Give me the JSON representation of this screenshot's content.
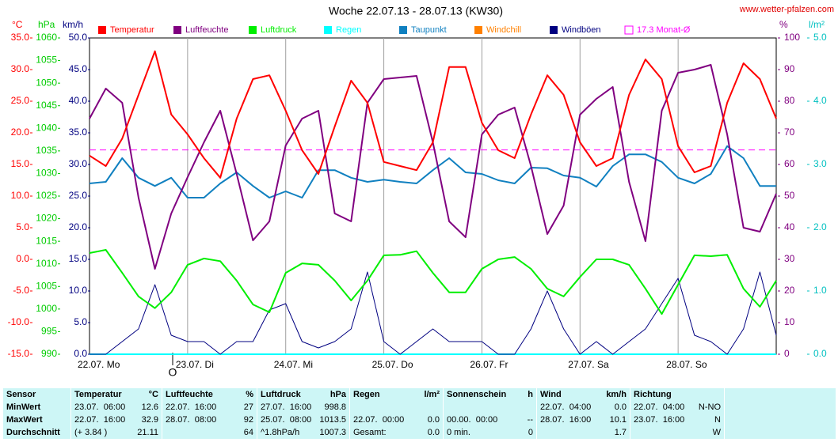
{
  "chart_data": {
    "type": "line",
    "title": "Woche 22.07.13 - 28.07.13 (KW30)",
    "source": "www.wetter-pfalzen.com",
    "marker_label": "O",
    "x_labels": [
      "22.07. Mo",
      "23.07. Di",
      "24.07. Mi",
      "25.07. Do",
      "26.07. Fr",
      "27.07. Sa",
      "28.07. So"
    ],
    "grid": true,
    "axes": {
      "temp": {
        "unit": "°C",
        "color": "#ff0000",
        "side": "left",
        "lim": [
          -15,
          35
        ],
        "ticks": [
          {
            "value": -15,
            "label": "-15.0"
          },
          {
            "value": -10,
            "label": "-10.0"
          },
          {
            "value": -5,
            "label": "-5.0"
          },
          {
            "value": 0,
            "label": "0.0"
          },
          {
            "value": 5,
            "label": "5.0"
          },
          {
            "value": 10,
            "label": "10.0"
          },
          {
            "value": 15,
            "label": "15.0"
          },
          {
            "value": 20,
            "label": "20.0"
          },
          {
            "value": 25,
            "label": "25.0"
          },
          {
            "value": 30,
            "label": "30.0"
          },
          {
            "value": 35,
            "label": "35.0"
          }
        ]
      },
      "hpa": {
        "unit": "hPa",
        "color": "#00cc00",
        "side": "left",
        "lim": [
          990,
          1060
        ],
        "ticks": [
          990,
          995,
          1000,
          1005,
          1010,
          1015,
          1020,
          1025,
          1030,
          1035,
          1040,
          1045,
          1050,
          1055,
          1060
        ]
      },
      "kmh": {
        "unit": "km/h",
        "color": "#000080",
        "side": "left",
        "lim": [
          0,
          50
        ],
        "ticks": [
          {
            "value": 0,
            "label": "0.0"
          },
          {
            "value": 5,
            "label": "5.0"
          },
          {
            "value": 10,
            "label": "10.0"
          },
          {
            "value": 15,
            "label": "15.0"
          },
          {
            "value": 20,
            "label": "20.0"
          },
          {
            "value": 25,
            "label": "25.0"
          },
          {
            "value": 30,
            "label": "30.0"
          },
          {
            "value": 35,
            "label": "35.0"
          },
          {
            "value": 40,
            "label": "40.0"
          },
          {
            "value": 45,
            "label": "45.0"
          },
          {
            "value": 50,
            "label": "50.0"
          }
        ]
      },
      "pct": {
        "unit": "%",
        "color": "#800080",
        "side": "right",
        "lim": [
          0,
          100
        ],
        "ticks": [
          0,
          10,
          20,
          30,
          40,
          50,
          60,
          70,
          80,
          90,
          100
        ]
      },
      "rain": {
        "unit": "l/m²",
        "color": "#00c0c0",
        "side": "right",
        "lim": [
          0,
          5
        ],
        "ticks": [
          {
            "value": 0,
            "label": "0.0"
          },
          {
            "value": 1,
            "label": "1.0"
          },
          {
            "value": 2,
            "label": "2.0"
          },
          {
            "value": 3,
            "label": "3.0"
          },
          {
            "value": 4,
            "label": "4.0"
          },
          {
            "value": 5,
            "label": "5.0"
          }
        ]
      }
    },
    "series": [
      {
        "name": "Temperatur",
        "color": "#ff0000",
        "axis": "temp",
        "values": [
          16.4,
          14.75,
          19.1,
          26,
          32.9,
          22.9,
          19.75,
          16,
          12.9,
          22.25,
          28.5,
          29.1,
          23.5,
          17.25,
          13.5,
          21,
          28.25,
          24.75,
          15.4,
          14.75,
          14.1,
          18.5,
          30.4,
          30.4,
          21.6,
          17.25,
          16,
          22.9,
          29.1,
          26,
          18.5,
          14.75,
          16,
          26,
          31.6,
          28.5,
          17.9,
          13.75,
          14.75,
          24.75,
          31,
          28.5,
          22.25
        ]
      },
      {
        "name": "Luftfeuchte",
        "color": "#800080",
        "axis": "pct",
        "values": [
          74.5,
          84,
          79.5,
          49.5,
          27,
          44.5,
          56,
          67,
          77,
          57,
          36,
          42,
          66,
          74.5,
          77,
          44.5,
          42,
          79.5,
          87,
          87.5,
          88,
          67,
          42,
          37,
          69.5,
          75.75,
          78,
          59.5,
          38,
          47,
          75.75,
          80.75,
          84.5,
          54.5,
          35.75,
          77,
          89,
          90,
          91.5,
          69.5,
          40,
          38.75,
          50.75
        ]
      },
      {
        "name": "Luftdruck",
        "color": "#00ee00",
        "axis": "hpa",
        "values": [
          1012.4,
          1013.1,
          1008,
          1002.8,
          1000.2,
          1003.7,
          1009.8,
          1011.2,
          1010.6,
          1006.3,
          1001,
          999.3,
          1008,
          1010.1,
          1009.8,
          1006.3,
          1001.9,
          1006.3,
          1011.9,
          1012,
          1012.8,
          1008,
          1003.7,
          1003.7,
          1008.9,
          1011,
          1011.5,
          1008.9,
          1004.5,
          1002.8,
          1007.1,
          1011,
          1011,
          1009.8,
          1004.5,
          998.9,
          1005.4,
          1011.9,
          1011.7,
          1012,
          1004.5,
          1000.5,
          1006.3
        ]
      },
      {
        "name": "Regen",
        "color": "#00ffff",
        "axis": "rain",
        "values": [
          0,
          0,
          0,
          0,
          0,
          0,
          0,
          0,
          0,
          0,
          0,
          0,
          0,
          0,
          0,
          0,
          0,
          0,
          0,
          0,
          0,
          0,
          0,
          0,
          0,
          0,
          0,
          0,
          0,
          0,
          0,
          0,
          0,
          0,
          0,
          0,
          0,
          0,
          0,
          0,
          0,
          0,
          0
        ]
      },
      {
        "name": "Taupunkt",
        "color": "#1080c0",
        "axis": "temp",
        "values": [
          12,
          12.25,
          16,
          12.9,
          11.6,
          12.9,
          9.75,
          9.75,
          12,
          13.75,
          11.6,
          9.75,
          10.75,
          9.75,
          14.1,
          14.1,
          12.9,
          12.25,
          12.6,
          12.25,
          12,
          14.1,
          16,
          13.75,
          13.5,
          12.5,
          12,
          14.5,
          14.4,
          13.25,
          12.9,
          11.5,
          14.75,
          16.6,
          16.6,
          15.4,
          12.9,
          12,
          13.5,
          17.9,
          16,
          11.6,
          11.6
        ]
      },
      {
        "name": "Windchill",
        "color": "#ff8000",
        "axis": "temp"
      },
      {
        "name": "Windböen",
        "color": "#000080",
        "axis": "kmh",
        "values": [
          0,
          0,
          2,
          4,
          11,
          3,
          2,
          2,
          0,
          2,
          2,
          7,
          8,
          2,
          1,
          2,
          4,
          13,
          2,
          0,
          2,
          4,
          2,
          2,
          2,
          0,
          0,
          4,
          10,
          4,
          0,
          2,
          0,
          2,
          4,
          8,
          12,
          3,
          2,
          0,
          4,
          13,
          3
        ]
      }
    ],
    "reference_line": {
      "name": "17.3 Monat-Ø",
      "value": 17.3,
      "axis": "temp",
      "color": "#ff00ff"
    }
  },
  "table": {
    "header": [
      {
        "l": "Sensor"
      },
      {
        "l": "Temperatur",
        "r": "°C"
      },
      {
        "l": "Luftfeuchte",
        "r": "%"
      },
      {
        "l": "Luftdruck",
        "r": "hPa"
      },
      {
        "l": "Regen",
        "r": "l/m²"
      },
      {
        "l": "Sonnenschein",
        "r": "h"
      },
      {
        "l": "Wind",
        "r": "km/h"
      },
      {
        "l": "Richtung"
      }
    ],
    "rows": [
      [
        {
          "l": "MinWert"
        },
        {
          "l": "23.07.  06:00",
          "r": "12.6"
        },
        {
          "l": "22.07.  16:00",
          "r": "27"
        },
        {
          "l": "27.07.  16:00",
          "r": "998.8"
        },
        {},
        {},
        {
          "l": "22.07.  04:00",
          "r": "0.0"
        },
        {
          "l": "22.07.  04:00",
          "r": "N-NO"
        }
      ],
      [
        {
          "l": "MaxWert"
        },
        {
          "l": "22.07.  16:00",
          "r": "32.9"
        },
        {
          "l": "28.07.  08:00",
          "r": "92"
        },
        {
          "l": "25.07.  08:00",
          "r": "1013.5"
        },
        {
          "l": "22.07.  00:00",
          "r": "0.0"
        },
        {
          "l": "00.00.  00:00",
          "r": "--"
        },
        {
          "l": "28.07.  16:00",
          "r": "10.1"
        },
        {
          "l": "23.07.  16:00",
          "r": "N"
        }
      ],
      [
        {
          "l": "Durchschnitt"
        },
        {
          "l": "(+ 3.84 )",
          "r": "21.11"
        },
        {
          "r": "64"
        },
        {
          "l": "^1.8hPa/h",
          "r": "1007.3"
        },
        {
          "l": "Gesamt:",
          "r": "0.0"
        },
        {
          "l": "0 min.",
          "r": "0"
        },
        {
          "r": "1.7"
        },
        {
          "r": "W"
        }
      ]
    ]
  }
}
